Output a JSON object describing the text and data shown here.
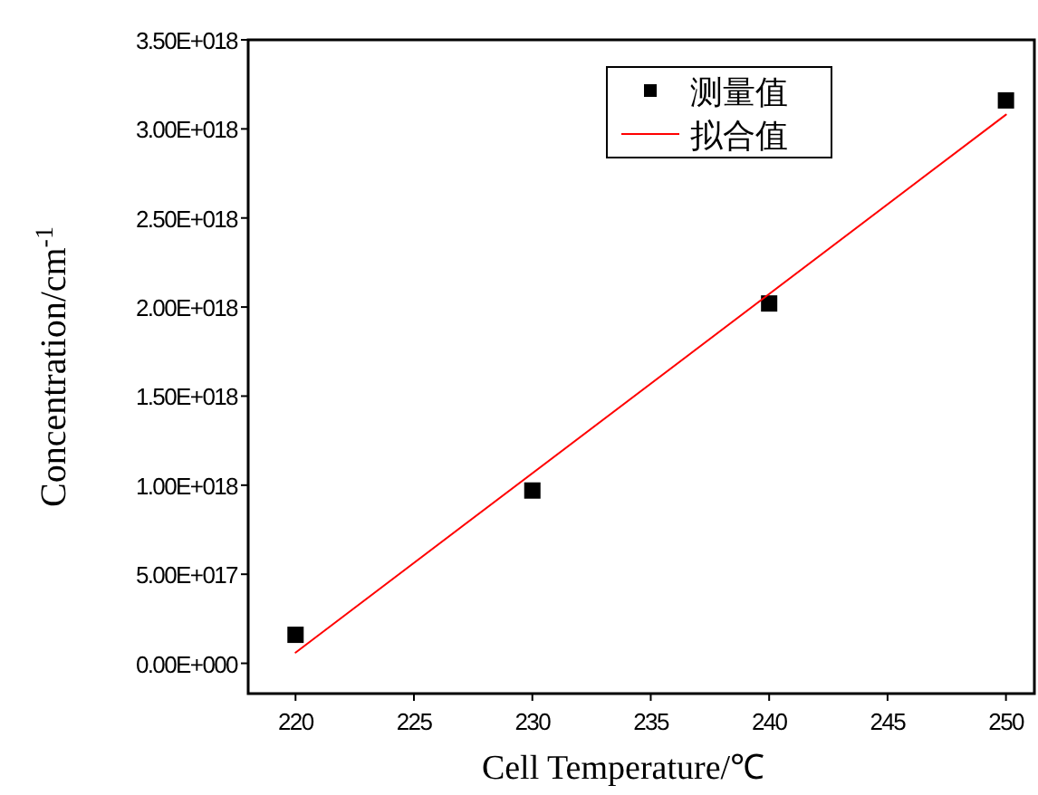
{
  "chart_data": {
    "type": "scatter",
    "xlabel": "Cell Temperature/℃",
    "ylabel": "Concentration/cm$^{-1}$",
    "xlim": [
      218,
      251.2
    ],
    "xticks": [
      220,
      225,
      230,
      235,
      240,
      245,
      250
    ],
    "ylim": [
      -1.7e+17,
      3.5e+18
    ],
    "yticks": [
      {
        "value": 0,
        "label": "0.00E+000"
      },
      {
        "value": 5e+17,
        "label": "5.00E+017"
      },
      {
        "value": 1e+18,
        "label": "1.00E+018"
      },
      {
        "value": 1.5e+18,
        "label": "1.50E+018"
      },
      {
        "value": 2e+18,
        "label": "2.00E+018"
      },
      {
        "value": 2.5e+18,
        "label": "2.50E+018"
      },
      {
        "value": 3e+18,
        "label": "3.00E+018"
      },
      {
        "value": 3.5e+18,
        "label": "3.50E+018"
      }
    ],
    "legend": "top right",
    "grid": false,
    "series": [
      {
        "name": "测量值",
        "marker": "square",
        "color": "#000000",
        "x": [
          220,
          230,
          240,
          250
        ],
        "values": [
          1.6e+17,
          9.7e+17,
          2.02e+18,
          3.16e+18
        ]
      },
      {
        "name": "拟合值",
        "type": "line",
        "marker": "none",
        "line_style": "solid",
        "color": "#ff0000",
        "x": [
          220,
          250
        ],
        "values": [
          6e+16,
          3.08e+18
        ]
      }
    ]
  }
}
